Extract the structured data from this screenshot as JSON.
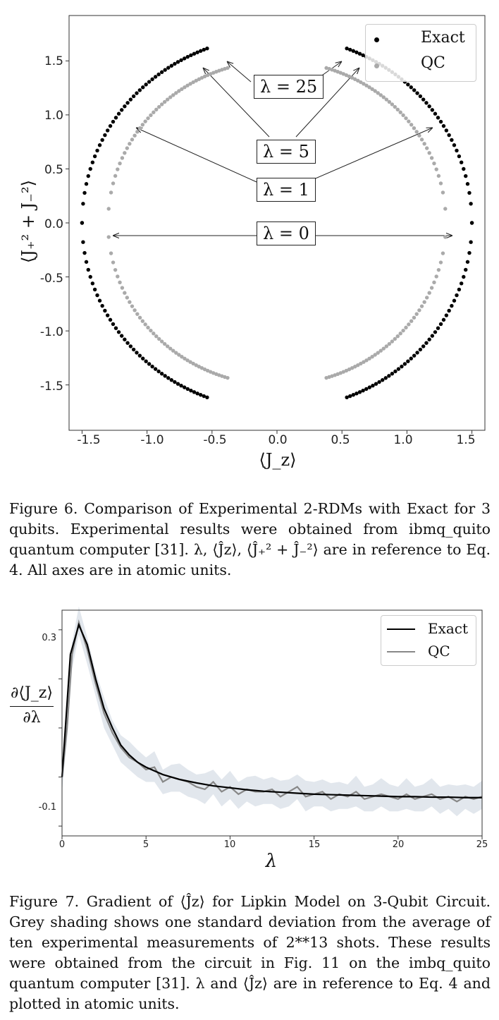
{
  "figure6": {
    "ylabel": "⟨J₊² + J₋²⟩",
    "xlabel": "⟨J_z⟩",
    "yticks": [
      "1.5",
      "1.0",
      "0.5",
      "0.0",
      "-0.5",
      "-1.0",
      "-1.5"
    ],
    "xticks": [
      "-1.5",
      "-1.0",
      "-0.5",
      "0.0",
      "0.5",
      "1.0",
      "1.5"
    ],
    "legend": {
      "exact": "Exact",
      "qc": "QC"
    },
    "annotations": [
      "λ = 25",
      "λ = 5",
      "λ = 1",
      "λ = 0"
    ],
    "caption": "Figure 6.  Comparison of Experimental 2-RDMs with Exact for 3 qubits.  Experimental results were obtained from ibmq_quito quantum computer [31].  λ, ⟨Ĵz⟩, ⟨Ĵ₊² + Ĵ₋²⟩ are in reference to Eq. 4. All axes are in atomic units."
  },
  "figure7": {
    "ylabel_num": "∂⟨J_z⟩",
    "ylabel_den": "∂λ",
    "xlabel": "λ",
    "yticks": [
      "0.3",
      "-0.1"
    ],
    "xticks": [
      "0",
      "5",
      "10",
      "15",
      "20",
      "25"
    ],
    "legend": {
      "exact": "Exact",
      "qc": "QC"
    },
    "caption": "Figure 7. Gradient of ⟨Ĵz⟩ for Lipkin Model on 3-Qubit Circuit.  Grey shading shows one standard deviation from the average of ten experimental measurements of 2**13 shots. These results were obtained from the circuit in Fig.  11 on the imbq_quito quantum computer [31].  λ and ⟨Ĵz⟩ are in reference to Eq. 4 and plotted in atomic units."
  },
  "chart_data": [
    {
      "type": "scatter",
      "xlabel": "⟨J_z⟩",
      "ylabel": "⟨J₊² + J₋²⟩",
      "xlim": [
        -1.6,
        1.6
      ],
      "ylim": [
        -1.92,
        1.92
      ],
      "legend": "top-right",
      "series": [
        {
          "name": "Exact",
          "color": "#000000",
          "shape": "ellipse",
          "a": 1.5,
          "b": 1.73,
          "theta_min_deg": 0,
          "theta_max_deg": 69,
          "count": 45
        },
        {
          "name": "QC",
          "color": "#aaaaaa",
          "shape": "ellipse",
          "a": 1.3,
          "b": 1.5,
          "theta_min_deg": 5,
          "theta_max_deg": 73,
          "count": 45
        }
      ],
      "annotations": [
        {
          "text": "λ = 25",
          "x": 0.03,
          "y": 1.24,
          "targets": [
            [
              -0.43,
              1.49
            ],
            [
              -0.62,
              1.43
            ],
            [
              0.5,
              1.48
            ],
            [
              0.7,
              1.45
            ]
          ]
        },
        {
          "text": "λ = 5",
          "x": 0.03,
          "y": 0.66
        },
        {
          "text": "λ = 1",
          "x": 0.03,
          "y": 0.3,
          "targets": [
            [
              -1.14,
              0.89
            ],
            [
              1.24,
              0.9
            ]
          ]
        },
        {
          "text": "λ = 0",
          "x": 0.03,
          "y": -0.1,
          "targets": [
            [
              -1.3,
              -0.11
            ],
            [
              1.41,
              -0.11
            ]
          ]
        }
      ]
    },
    {
      "type": "line",
      "xlabel": "λ",
      "ylabel": "∂⟨J_z⟩/∂λ",
      "xlim": [
        0,
        25
      ],
      "ylim": [
        -0.12,
        0.34
      ],
      "legend": "top-right",
      "series": [
        {
          "name": "Exact",
          "color": "#000000",
          "x": [
            0,
            0.5,
            1,
            1.5,
            2,
            2.5,
            3,
            3.5,
            4,
            4.5,
            5,
            6,
            7,
            8,
            9,
            10,
            11,
            12,
            13,
            14,
            15,
            16,
            17,
            18,
            19,
            20,
            21,
            22,
            23,
            24,
            25
          ],
          "y": [
            0.0,
            0.25,
            0.31,
            0.27,
            0.2,
            0.14,
            0.1,
            0.065,
            0.045,
            0.03,
            0.02,
            0.005,
            -0.005,
            -0.012,
            -0.018,
            -0.022,
            -0.026,
            -0.029,
            -0.031,
            -0.033,
            -0.035,
            -0.036,
            -0.037,
            -0.038,
            -0.039,
            -0.04,
            -0.04,
            -0.041,
            -0.041,
            -0.042,
            -0.042
          ]
        },
        {
          "name": "QC",
          "color": "#888888",
          "x": [
            0,
            0.3,
            0.6,
            1,
            1.5,
            2,
            2.5,
            3,
            3.5,
            4,
            4.5,
            5,
            5.5,
            6,
            6.5,
            7,
            7.5,
            8,
            8.5,
            9,
            9.5,
            10,
            10.5,
            11,
            11.5,
            12,
            12.5,
            13,
            13.5,
            14,
            14.5,
            15,
            15.5,
            16,
            16.5,
            17,
            17.5,
            18,
            18.5,
            19,
            19.5,
            20,
            20.5,
            21,
            21.5,
            22,
            22.5,
            23,
            23.5,
            24,
            24.5,
            25
          ],
          "y": [
            0.0,
            0.1,
            0.25,
            0.315,
            0.26,
            0.19,
            0.13,
            0.09,
            0.06,
            0.04,
            0.03,
            0.015,
            0.02,
            -0.01,
            0.0,
            -0.005,
            -0.01,
            -0.02,
            -0.025,
            -0.01,
            -0.03,
            -0.02,
            -0.035,
            -0.025,
            -0.03,
            -0.03,
            -0.025,
            -0.04,
            -0.03,
            -0.02,
            -0.04,
            -0.035,
            -0.03,
            -0.045,
            -0.035,
            -0.04,
            -0.03,
            -0.045,
            -0.04,
            -0.035,
            -0.04,
            -0.045,
            -0.035,
            -0.045,
            -0.04,
            -0.035,
            -0.045,
            -0.04,
            -0.05,
            -0.04,
            -0.045,
            -0.04
          ]
        }
      ],
      "band": {
        "color": "#dde3ea",
        "stdev": 0.025
      }
    }
  ]
}
